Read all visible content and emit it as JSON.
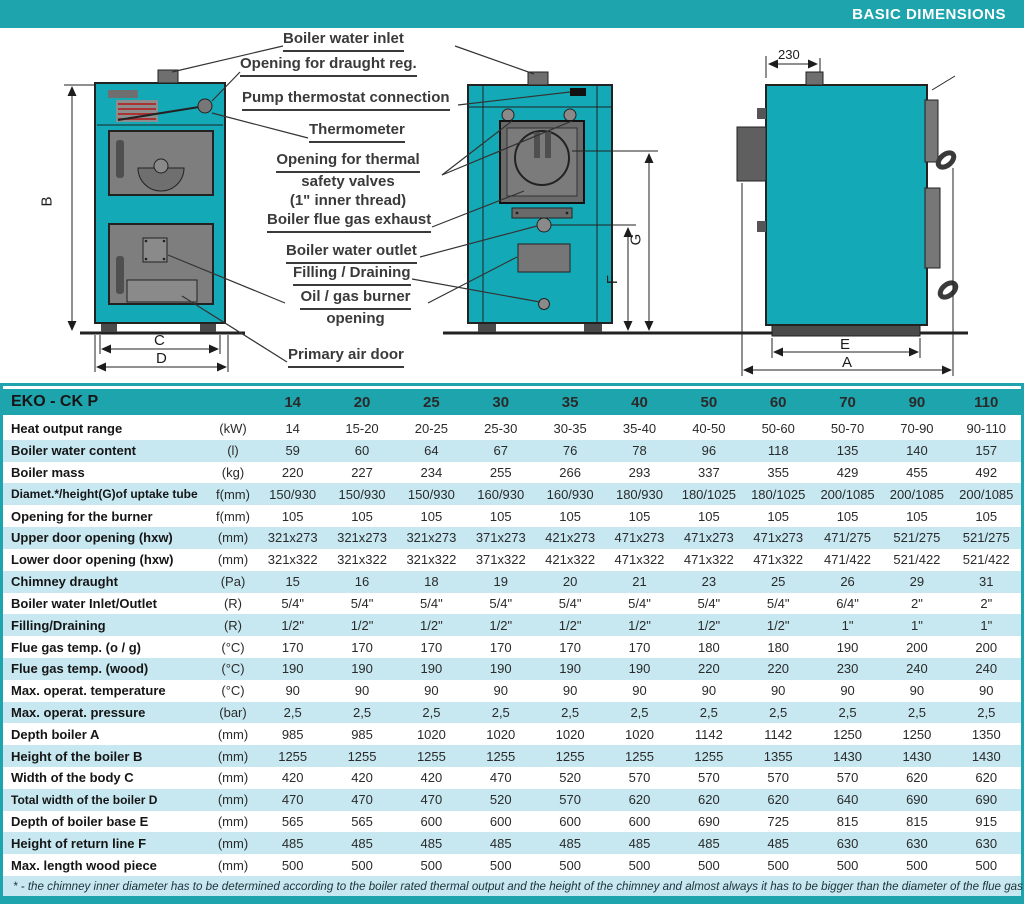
{
  "page": {
    "header_title": "BASIC DIMENSIONS",
    "footnote": "* - the chimney inner diameter has to be determined according to the boiler rated thermal output and the height of the chimney and almost always it has to be bigger than the diameter of the flue gas exhaust."
  },
  "colors": {
    "teal": "#1ea4ad",
    "boiler_body": "#14a9b6",
    "row_alternate": "#c7e8f1",
    "header_text": "#ffffff"
  },
  "diagram": {
    "callouts": {
      "boiler_water_inlet": "Boiler water inlet",
      "opening_for_draught_reg": "Opening for draught reg.",
      "pump_thermostat_connection": "Pump thermostat connection",
      "thermometer": "Thermometer",
      "opening_thermal_line1": "Opening for thermal",
      "opening_thermal_line2": "safety valves",
      "opening_thermal_line3": "(1\" inner thread)",
      "boiler_flue_gas_exhaust": "Boiler flue gas exhaust",
      "boiler_water_outlet": "Boiler water outlet",
      "filling_draining": "Filling / Draining",
      "oil_gas_burner_line1": "Oil / gas burner",
      "oil_gas_burner_line2": "opening",
      "primary_air_door": "Primary air door"
    },
    "dimensions": {
      "a": "A",
      "b": "B",
      "c": "C",
      "d": "D",
      "e": "E",
      "f": "F",
      "g": "G",
      "chimney_offset": "230"
    }
  },
  "table": {
    "title": "EKO - CK P",
    "model_columns": [
      "14",
      "20",
      "25",
      "30",
      "35",
      "40",
      "50",
      "60",
      "70",
      "90",
      "110"
    ],
    "rows": [
      {
        "label": "Heat output range",
        "unit": "(kW)",
        "values": [
          "14",
          "15-20",
          "20-25",
          "25-30",
          "30-35",
          "35-40",
          "40-50",
          "50-60",
          "50-70",
          "70-90",
          "90-110"
        ]
      },
      {
        "label": "Boiler water content",
        "unit": "(l)",
        "values": [
          "59",
          "60",
          "64",
          "67",
          "76",
          "78",
          "96",
          "118",
          "135",
          "140",
          "157"
        ]
      },
      {
        "label": "Boiler mass",
        "unit": "(kg)",
        "values": [
          "220",
          "227",
          "234",
          "255",
          "266",
          "293",
          "337",
          "355",
          "429",
          "455",
          "492"
        ]
      },
      {
        "label": "Diamet.*/height(G)of uptake tube",
        "unit": "f(mm)",
        "values": [
          "150/930",
          "150/930",
          "150/930",
          "160/930",
          "160/930",
          "180/930",
          "180/1025",
          "180/1025",
          "200/1085",
          "200/1085",
          "200/1085"
        ]
      },
      {
        "label": "Opening for the burner",
        "unit": "f(mm)",
        "values": [
          "105",
          "105",
          "105",
          "105",
          "105",
          "105",
          "105",
          "105",
          "105",
          "105",
          "105"
        ]
      },
      {
        "label": "Upper door opening (hxw)",
        "unit": "(mm)",
        "values": [
          "321x273",
          "321x273",
          "321x273",
          "371x273",
          "421x273",
          "471x273",
          "471x273",
          "471x273",
          "471/275",
          "521/275",
          "521/275"
        ]
      },
      {
        "label": "Lower door opening (hxw)",
        "unit": "(mm)",
        "values": [
          "321x322",
          "321x322",
          "321x322",
          "371x322",
          "421x322",
          "471x322",
          "471x322",
          "471x322",
          "471/422",
          "521/422",
          "521/422"
        ]
      },
      {
        "label": "Chimney draught",
        "unit": "(Pa)",
        "values": [
          "15",
          "16",
          "18",
          "19",
          "20",
          "21",
          "23",
          "25",
          "26",
          "29",
          "31"
        ]
      },
      {
        "label": "Boiler water Inlet/Outlet",
        "unit": "(R)",
        "values": [
          "5/4\"",
          "5/4\"",
          "5/4\"",
          "5/4\"",
          "5/4\"",
          "5/4\"",
          "5/4\"",
          "5/4\"",
          "6/4\"",
          "2\"",
          "2\""
        ]
      },
      {
        "label": "Filling/Draining",
        "unit": "(R)",
        "values": [
          "1/2\"",
          "1/2\"",
          "1/2\"",
          "1/2\"",
          "1/2\"",
          "1/2\"",
          "1/2\"",
          "1/2\"",
          "1\"",
          "1\"",
          "1\""
        ]
      },
      {
        "label": "Flue gas temp. (o / g)",
        "unit": "(°C)",
        "values": [
          "170",
          "170",
          "170",
          "170",
          "170",
          "170",
          "180",
          "180",
          "190",
          "200",
          "200"
        ]
      },
      {
        "label": "Flue gas temp. (wood)",
        "unit": "(°C)",
        "values": [
          "190",
          "190",
          "190",
          "190",
          "190",
          "190",
          "220",
          "220",
          "230",
          "240",
          "240"
        ]
      },
      {
        "label": "Max. operat. temperature",
        "unit": "(°C)",
        "values": [
          "90",
          "90",
          "90",
          "90",
          "90",
          "90",
          "90",
          "90",
          "90",
          "90",
          "90"
        ]
      },
      {
        "label": "Max. operat. pressure",
        "unit": "(bar)",
        "values": [
          "2,5",
          "2,5",
          "2,5",
          "2,5",
          "2,5",
          "2,5",
          "2,5",
          "2,5",
          "2,5",
          "2,5",
          "2,5"
        ]
      },
      {
        "label": "Depth boiler A",
        "unit": "(mm)",
        "values": [
          "985",
          "985",
          "1020",
          "1020",
          "1020",
          "1020",
          "1142",
          "1142",
          "1250",
          "1250",
          "1350"
        ]
      },
      {
        "label": "Height of the boiler B",
        "unit": "(mm)",
        "values": [
          "1255",
          "1255",
          "1255",
          "1255",
          "1255",
          "1255",
          "1255",
          "1355",
          "1430",
          "1430",
          "1430"
        ]
      },
      {
        "label": "Width of the body C",
        "unit": "(mm)",
        "values": [
          "420",
          "420",
          "420",
          "470",
          "520",
          "570",
          "570",
          "570",
          "570",
          "620",
          "620"
        ]
      },
      {
        "label": "Total width of the boiler D",
        "unit": "(mm)",
        "values": [
          "470",
          "470",
          "470",
          "520",
          "570",
          "620",
          "620",
          "620",
          "640",
          "690",
          "690"
        ]
      },
      {
        "label": "Depth of boiler base  E",
        "unit": "(mm)",
        "values": [
          "565",
          "565",
          "600",
          "600",
          "600",
          "600",
          "690",
          "725",
          "815",
          "815",
          "915"
        ]
      },
      {
        "label": "Height of return line F",
        "unit": "(mm)",
        "values": [
          "485",
          "485",
          "485",
          "485",
          "485",
          "485",
          "485",
          "485",
          "630",
          "630",
          "630"
        ]
      },
      {
        "label": "Max. length wood piece",
        "unit": "(mm)",
        "values": [
          "500",
          "500",
          "500",
          "500",
          "500",
          "500",
          "500",
          "500",
          "500",
          "500",
          "500"
        ]
      }
    ]
  }
}
